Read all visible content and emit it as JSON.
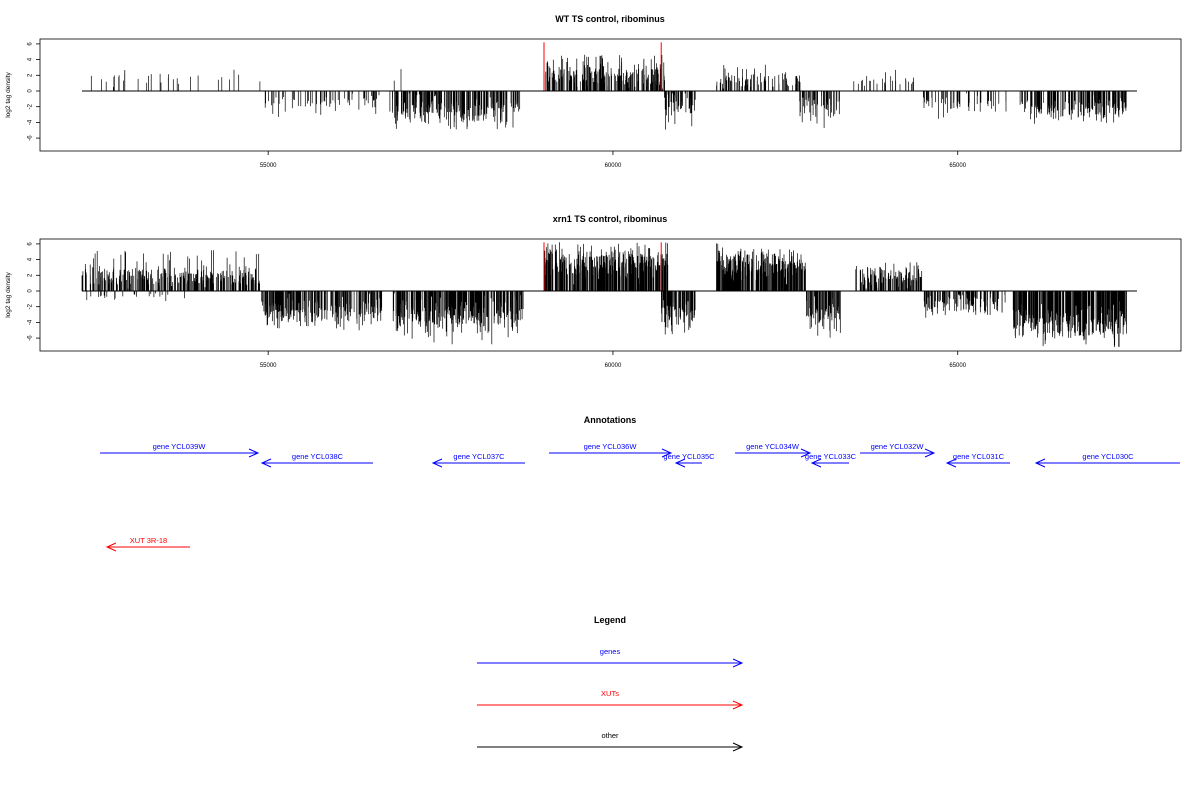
{
  "chart_data": [
    {
      "type": "bar",
      "title": "WT TS control, ribominus",
      "ylabel": "log2 tag density",
      "xlim": [
        52300,
        67600
      ],
      "ylim": [
        -8,
        7
      ],
      "yticks": [
        -6,
        -4,
        -2,
        0,
        2,
        4,
        6
      ],
      "xticks": [
        55000,
        60000,
        65000
      ],
      "markers": {
        "color": "#ff0000",
        "positions": [
          59000,
          60700
        ],
        "value": 6.2
      },
      "seed": 7,
      "segments": [
        {
          "start": 52300,
          "end": 54900,
          "strand": 1,
          "density": 0.012,
          "mean": 1.5,
          "spread": 0.8,
          "max": 2.8
        },
        {
          "start": 54950,
          "end": 56650,
          "strand": -1,
          "density": 0.035,
          "mean": 1.4,
          "spread": 0.8,
          "max": 3.3
        },
        {
          "start": 56600,
          "end": 57000,
          "strand": 1,
          "density": 0.004,
          "mean": 1.8,
          "spread": 0.6,
          "max": 2.8
        },
        {
          "start": 56750,
          "end": 58650,
          "strand": -1,
          "density": 0.12,
          "mean": 2.4,
          "spread": 1.3,
          "max": 4.9
        },
        {
          "start": 59000,
          "end": 60750,
          "strand": 1,
          "density": 0.12,
          "mean": 2.0,
          "spread": 1.2,
          "max": 4.8
        },
        {
          "start": 60700,
          "end": 61200,
          "strand": -1,
          "density": 0.1,
          "mean": 1.6,
          "spread": 1.1,
          "max": 5.2
        },
        {
          "start": 61400,
          "end": 62800,
          "strand": 1,
          "density": 0.06,
          "mean": 1.4,
          "spread": 0.9,
          "max": 3.5
        },
        {
          "start": 62700,
          "end": 63300,
          "strand": -1,
          "density": 0.09,
          "mean": 1.9,
          "spread": 1.1,
          "max": 4.9
        },
        {
          "start": 63450,
          "end": 64500,
          "strand": 1,
          "density": 0.025,
          "mean": 1.2,
          "spread": 0.5,
          "max": 2.7
        },
        {
          "start": 64500,
          "end": 65700,
          "strand": -1,
          "density": 0.04,
          "mean": 1.6,
          "spread": 1.0,
          "max": 3.9
        },
        {
          "start": 65900,
          "end": 67450,
          "strand": -1,
          "density": 0.12,
          "mean": 2.0,
          "spread": 1.0,
          "max": 4.2
        }
      ]
    },
    {
      "type": "bar",
      "title": "xrn1 TS control, ribominus",
      "ylabel": "log2 tag density",
      "xlim": [
        52300,
        67600
      ],
      "ylim": [
        -8,
        7
      ],
      "yticks": [
        -6,
        -4,
        -2,
        0,
        2,
        4,
        6
      ],
      "xticks": [
        55000,
        60000,
        65000
      ],
      "markers": {
        "color": "#ff0000",
        "positions": [
          59000,
          60700
        ],
        "value": 6.2
      },
      "seed": 19,
      "segments": [
        {
          "start": 52300,
          "end": 54900,
          "strand": 1,
          "density": 0.12,
          "mean": 1.8,
          "spread": 1.1,
          "max": 5.2
        },
        {
          "start": 52300,
          "end": 53800,
          "strand": -1,
          "density": 0.015,
          "mean": 0.8,
          "spread": 0.4,
          "max": 1.6
        },
        {
          "start": 54900,
          "end": 56650,
          "strand": -1,
          "density": 0.14,
          "mean": 2.4,
          "spread": 1.3,
          "max": 5.2
        },
        {
          "start": 56800,
          "end": 58700,
          "strand": -1,
          "density": 0.16,
          "mean": 3.0,
          "spread": 1.5,
          "max": 6.8
        },
        {
          "start": 59000,
          "end": 60800,
          "strand": 1,
          "density": 0.2,
          "mean": 3.5,
          "spread": 1.5,
          "max": 6.2
        },
        {
          "start": 60700,
          "end": 61200,
          "strand": -1,
          "density": 0.16,
          "mean": 2.8,
          "spread": 1.3,
          "max": 5.6
        },
        {
          "start": 61500,
          "end": 62800,
          "strand": 1,
          "density": 0.2,
          "mean": 3.2,
          "spread": 1.3,
          "max": 6.1
        },
        {
          "start": 62800,
          "end": 63300,
          "strand": -1,
          "density": 0.16,
          "mean": 2.8,
          "spread": 1.4,
          "max": 6.0
        },
        {
          "start": 63500,
          "end": 64500,
          "strand": 1,
          "density": 0.12,
          "mean": 1.7,
          "spread": 0.9,
          "max": 3.7
        },
        {
          "start": 64500,
          "end": 65700,
          "strand": -1,
          "density": 0.1,
          "mean": 1.6,
          "spread": 1.0,
          "max": 3.4
        },
        {
          "start": 65800,
          "end": 67450,
          "strand": -1,
          "density": 0.22,
          "mean": 3.6,
          "spread": 1.5,
          "max": 7.2
        }
      ]
    }
  ],
  "annotations": {
    "title": "Annotations",
    "items": [
      {
        "label": "gene YCL039W",
        "start": 100,
        "end": 258,
        "dir": "right",
        "row": 0,
        "color": "#0000ff"
      },
      {
        "label": "gene YCL038C",
        "start": 373,
        "end": 262,
        "dir": "left",
        "row": 1,
        "color": "#0000ff"
      },
      {
        "label": "gene YCL037C",
        "start": 525,
        "end": 433,
        "dir": "left",
        "row": 1,
        "color": "#0000ff"
      },
      {
        "label": "gene YCL036W",
        "start": 549,
        "end": 671,
        "dir": "right",
        "row": 0,
        "color": "#0000ff"
      },
      {
        "label": "gene YCL035C",
        "start": 702,
        "end": 676,
        "dir": "left",
        "row": 1,
        "color": "#0000ff"
      },
      {
        "label": "gene YCL034W",
        "start": 735,
        "end": 810,
        "dir": "right",
        "row": 0,
        "color": "#0000ff"
      },
      {
        "label": "gene YCL033C",
        "start": 849,
        "end": 812,
        "dir": "left",
        "row": 1,
        "color": "#0000ff"
      },
      {
        "label": "gene YCL032W",
        "start": 860,
        "end": 934,
        "dir": "right",
        "row": 0,
        "color": "#0000ff"
      },
      {
        "label": "gene YCL031C",
        "start": 1010,
        "end": 947,
        "dir": "left",
        "row": 1,
        "color": "#0000ff"
      },
      {
        "label": "gene YCL030C",
        "start": 1180,
        "end": 1036,
        "dir": "left",
        "row": 1,
        "color": "#0000ff"
      },
      {
        "label": "XUT 3R-18",
        "start": 190,
        "end": 107,
        "dir": "left",
        "row": 2,
        "color": "#ff0000"
      }
    ]
  },
  "legend": {
    "title": "Legend",
    "items": [
      {
        "label": "genes",
        "color": "#0000ff"
      },
      {
        "label": "XUTs",
        "color": "#ff0000"
      },
      {
        "label": "other",
        "color": "#000000"
      }
    ]
  }
}
